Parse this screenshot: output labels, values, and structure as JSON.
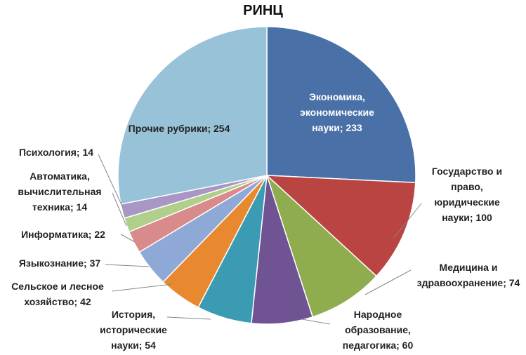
{
  "chart_data": {
    "type": "pie",
    "title": "РИНЦ",
    "values": [
      233,
      100,
      74,
      60,
      54,
      42,
      37,
      22,
      14,
      14,
      254
    ],
    "value_labels": [
      "Экономика, экономические науки; 233",
      "Государство и право, юридические науки; 100",
      "Медицина и здравоохранение; 74",
      "Народное образование, педагогика; 60",
      "История, исторические науки; 54",
      "Сельское и лесное хозяйство; 42",
      "Языкознание; 37",
      "Информатика; 22",
      "Автоматика, вычислительная техника; 14",
      "Психология; 14",
      "Прочие рубрики; 254"
    ],
    "colors": [
      "#4a70a8",
      "#b94441",
      "#8fad4e",
      "#6f5393",
      "#3a9bb3",
      "#e8892f",
      "#8fa9d6",
      "#d98a8a",
      "#b0cf8a",
      "#a897c4",
      "#98c2d8"
    ]
  }
}
